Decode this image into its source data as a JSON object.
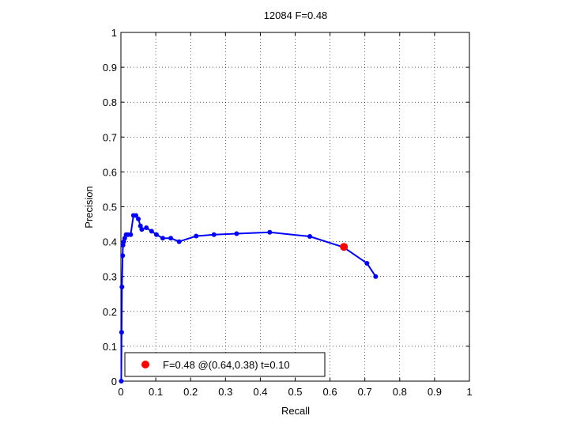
{
  "chart_data": {
    "type": "line",
    "title": "12084 F=0.48",
    "xlabel": "Recall",
    "ylabel": "Precision",
    "xlim": [
      0,
      1
    ],
    "ylim": [
      0,
      1
    ],
    "xticks": [
      "0",
      "0.1",
      "0.2",
      "0.3",
      "0.4",
      "0.5",
      "0.6",
      "0.7",
      "0.8",
      "0.9",
      "1"
    ],
    "yticks": [
      "0",
      "0.1",
      "0.2",
      "0.3",
      "0.4",
      "0.5",
      "0.6",
      "0.7",
      "0.8",
      "0.9",
      "1"
    ],
    "grid": true,
    "grid_style": "dotted",
    "legend": {
      "position": "bottom-left",
      "label": "F=0.48 @(0.64,0.38) t=0.10"
    },
    "series": [
      {
        "color": "#0000ff",
        "points": [
          [
            0.001,
            0.0
          ],
          [
            0.002,
            0.14
          ],
          [
            0.003,
            0.27
          ],
          [
            0.005,
            0.36
          ],
          [
            0.006,
            0.39
          ],
          [
            0.008,
            0.4
          ],
          [
            0.011,
            0.41
          ],
          [
            0.015,
            0.42
          ],
          [
            0.02,
            0.42
          ],
          [
            0.028,
            0.42
          ],
          [
            0.036,
            0.475
          ],
          [
            0.043,
            0.475
          ],
          [
            0.05,
            0.465
          ],
          [
            0.056,
            0.445
          ],
          [
            0.06,
            0.435
          ],
          [
            0.073,
            0.44
          ],
          [
            0.088,
            0.43
          ],
          [
            0.102,
            0.42
          ],
          [
            0.12,
            0.41
          ],
          [
            0.143,
            0.41
          ],
          [
            0.167,
            0.4
          ],
          [
            0.216,
            0.416
          ],
          [
            0.267,
            0.42
          ],
          [
            0.332,
            0.423
          ],
          [
            0.427,
            0.427
          ],
          [
            0.542,
            0.415
          ],
          [
            0.639,
            0.384
          ],
          [
            0.706,
            0.338
          ],
          [
            0.731,
            0.3
          ]
        ]
      }
    ],
    "highlight": {
      "x": 0.64,
      "y": 0.385,
      "color": "#ff0000"
    }
  }
}
